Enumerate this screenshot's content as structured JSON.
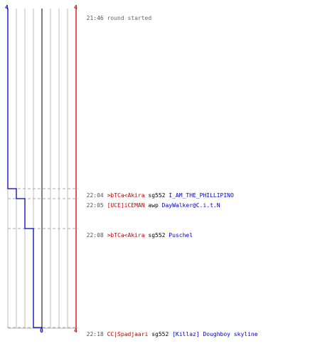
{
  "colors": {
    "team_a": "#0000cc",
    "team_b": "#cc0000",
    "grid": "#bbbbbb",
    "center_line": "#555555",
    "dashed": "#aaaaaa",
    "time": "#555555",
    "header_text": "#666666",
    "weapon": "#000000"
  },
  "score_labels": {
    "team_a_top": "4",
    "team_b_top": "4",
    "team_a_bottom": "0",
    "team_b_bottom": "4"
  },
  "header_event": {
    "time": "21:46",
    "text": "round started"
  },
  "score_steps": [
    {
      "time": "21:46",
      "team_a": 4,
      "team_b": 4
    },
    {
      "time": "22:04",
      "team_a": 3,
      "team_b": 4
    },
    {
      "time": "22:05",
      "team_a": 2,
      "team_b": 4
    },
    {
      "time": "22:08",
      "team_a": 1,
      "team_b": 4
    },
    {
      "time": "22:18",
      "team_a": 0,
      "team_b": 4
    }
  ],
  "events": [
    {
      "time": "22:04",
      "killer": ">bTCa<Akira",
      "killer_team": "b",
      "weapon": "sg552",
      "victim": "I_AM_THE_PHILLIPINO",
      "victim_team": "a"
    },
    {
      "time": "22:05",
      "killer": "[UCE]iCEMAN",
      "killer_team": "b",
      "weapon": "awp",
      "victim": "DayWalker@C.i.t.N",
      "victim_team": "a"
    },
    {
      "time": "22:08",
      "killer": ">bTCa<Akira",
      "killer_team": "b",
      "weapon": "sg552",
      "victim": "Puschel",
      "victim_team": "a"
    },
    {
      "time": "22:18",
      "killer": "CC|Spadjaari",
      "killer_team": "b",
      "weapon": "sg552",
      "victim": "[Killaz] Doughboy skyline",
      "victim_team": "a"
    }
  ]
}
